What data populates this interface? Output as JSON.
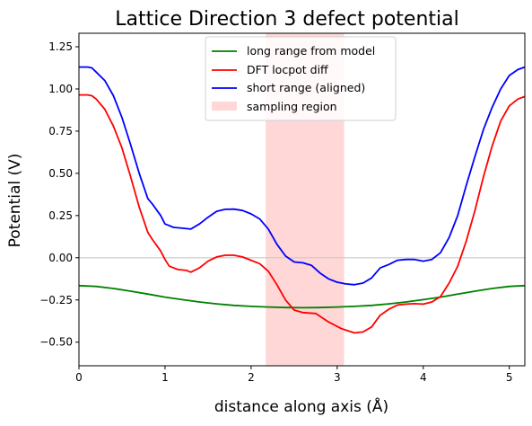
{
  "chart_data": {
    "type": "line",
    "title": "Lattice Direction 3 defect potential",
    "xlabel": "distance along axis (Å)",
    "ylabel": "Potential (V)",
    "xlim": [
      0,
      5.18
    ],
    "ylim": [
      -0.64,
      1.33
    ],
    "xticks": [
      "0",
      "1",
      "2",
      "3",
      "4",
      "5"
    ],
    "yticks": [
      "1.25",
      "1.00",
      "0.75",
      "0.50",
      "0.25",
      "0.00",
      "−0.25",
      "−0.50"
    ],
    "grid": false,
    "legend_position": "top-center",
    "zero_line": {
      "y": 0.0,
      "color": "#c8c8c8"
    },
    "sampling_region": {
      "name": "sampling region",
      "x0": 2.17,
      "x1": 3.08,
      "color": "#ffd7d7"
    },
    "series": [
      {
        "name": "long range from model",
        "color": "#008000",
        "points": [
          [
            0,
            -0.165
          ],
          [
            0.2,
            -0.17
          ],
          [
            0.4,
            -0.182
          ],
          [
            0.6,
            -0.198
          ],
          [
            0.8,
            -0.215
          ],
          [
            1.0,
            -0.233
          ],
          [
            1.2,
            -0.248
          ],
          [
            1.4,
            -0.262
          ],
          [
            1.6,
            -0.273
          ],
          [
            1.8,
            -0.282
          ],
          [
            2.0,
            -0.288
          ],
          [
            2.2,
            -0.292
          ],
          [
            2.4,
            -0.295
          ],
          [
            2.6,
            -0.296
          ],
          [
            2.8,
            -0.295
          ],
          [
            3.0,
            -0.292
          ],
          [
            3.2,
            -0.288
          ],
          [
            3.4,
            -0.282
          ],
          [
            3.6,
            -0.273
          ],
          [
            3.8,
            -0.262
          ],
          [
            4.0,
            -0.248
          ],
          [
            4.2,
            -0.233
          ],
          [
            4.4,
            -0.215
          ],
          [
            4.6,
            -0.198
          ],
          [
            4.8,
            -0.182
          ],
          [
            5.0,
            -0.17
          ],
          [
            5.18,
            -0.165
          ]
        ]
      },
      {
        "name": "DFT locpot diff",
        "color": "#ff0000",
        "points": [
          [
            0,
            0.965
          ],
          [
            0.1,
            0.965
          ],
          [
            0.15,
            0.96
          ],
          [
            0.2,
            0.94
          ],
          [
            0.3,
            0.88
          ],
          [
            0.4,
            0.78
          ],
          [
            0.5,
            0.65
          ],
          [
            0.6,
            0.48
          ],
          [
            0.7,
            0.3
          ],
          [
            0.8,
            0.15
          ],
          [
            0.85,
            0.11
          ],
          [
            0.95,
            0.04
          ],
          [
            1.0,
            -0.01
          ],
          [
            1.05,
            -0.05
          ],
          [
            1.15,
            -0.07
          ],
          [
            1.25,
            -0.075
          ],
          [
            1.3,
            -0.085
          ],
          [
            1.4,
            -0.06
          ],
          [
            1.5,
            -0.02
          ],
          [
            1.6,
            0.005
          ],
          [
            1.7,
            0.015
          ],
          [
            1.8,
            0.015
          ],
          [
            1.9,
            0.005
          ],
          [
            2.0,
            -0.015
          ],
          [
            2.1,
            -0.035
          ],
          [
            2.2,
            -0.08
          ],
          [
            2.3,
            -0.16
          ],
          [
            2.4,
            -0.25
          ],
          [
            2.5,
            -0.31
          ],
          [
            2.6,
            -0.325
          ],
          [
            2.75,
            -0.33
          ],
          [
            2.9,
            -0.38
          ],
          [
            3.05,
            -0.42
          ],
          [
            3.2,
            -0.445
          ],
          [
            3.3,
            -0.44
          ],
          [
            3.4,
            -0.41
          ],
          [
            3.5,
            -0.34
          ],
          [
            3.6,
            -0.305
          ],
          [
            3.7,
            -0.28
          ],
          [
            3.8,
            -0.275
          ],
          [
            3.9,
            -0.272
          ],
          [
            4.0,
            -0.275
          ],
          [
            4.1,
            -0.262
          ],
          [
            4.2,
            -0.23
          ],
          [
            4.3,
            -0.15
          ],
          [
            4.4,
            -0.05
          ],
          [
            4.5,
            0.1
          ],
          [
            4.6,
            0.28
          ],
          [
            4.7,
            0.48
          ],
          [
            4.8,
            0.66
          ],
          [
            4.9,
            0.81
          ],
          [
            5.0,
            0.9
          ],
          [
            5.1,
            0.94
          ],
          [
            5.18,
            0.955
          ]
        ]
      },
      {
        "name": "short range (aligned)",
        "color": "#0000ff",
        "points": [
          [
            0,
            1.13
          ],
          [
            0.1,
            1.13
          ],
          [
            0.15,
            1.125
          ],
          [
            0.2,
            1.1
          ],
          [
            0.3,
            1.05
          ],
          [
            0.4,
            0.96
          ],
          [
            0.5,
            0.83
          ],
          [
            0.6,
            0.67
          ],
          [
            0.7,
            0.5
          ],
          [
            0.8,
            0.35
          ],
          [
            0.85,
            0.32
          ],
          [
            0.95,
            0.25
          ],
          [
            1.0,
            0.2
          ],
          [
            1.1,
            0.18
          ],
          [
            1.2,
            0.175
          ],
          [
            1.3,
            0.17
          ],
          [
            1.4,
            0.2
          ],
          [
            1.5,
            0.24
          ],
          [
            1.6,
            0.275
          ],
          [
            1.7,
            0.287
          ],
          [
            1.8,
            0.288
          ],
          [
            1.9,
            0.28
          ],
          [
            2.0,
            0.26
          ],
          [
            2.1,
            0.23
          ],
          [
            2.2,
            0.17
          ],
          [
            2.3,
            0.08
          ],
          [
            2.4,
            0.01
          ],
          [
            2.5,
            -0.025
          ],
          [
            2.6,
            -0.03
          ],
          [
            2.7,
            -0.045
          ],
          [
            2.8,
            -0.09
          ],
          [
            2.9,
            -0.125
          ],
          [
            3.0,
            -0.145
          ],
          [
            3.1,
            -0.155
          ],
          [
            3.2,
            -0.16
          ],
          [
            3.3,
            -0.15
          ],
          [
            3.4,
            -0.12
          ],
          [
            3.5,
            -0.06
          ],
          [
            3.6,
            -0.04
          ],
          [
            3.7,
            -0.015
          ],
          [
            3.8,
            -0.01
          ],
          [
            3.9,
            -0.01
          ],
          [
            4.0,
            -0.02
          ],
          [
            4.1,
            -0.01
          ],
          [
            4.2,
            0.03
          ],
          [
            4.3,
            0.12
          ],
          [
            4.4,
            0.25
          ],
          [
            4.5,
            0.43
          ],
          [
            4.6,
            0.6
          ],
          [
            4.7,
            0.76
          ],
          [
            4.8,
            0.89
          ],
          [
            4.9,
            1.0
          ],
          [
            5.0,
            1.08
          ],
          [
            5.1,
            1.115
          ],
          [
            5.18,
            1.13
          ]
        ]
      }
    ]
  }
}
